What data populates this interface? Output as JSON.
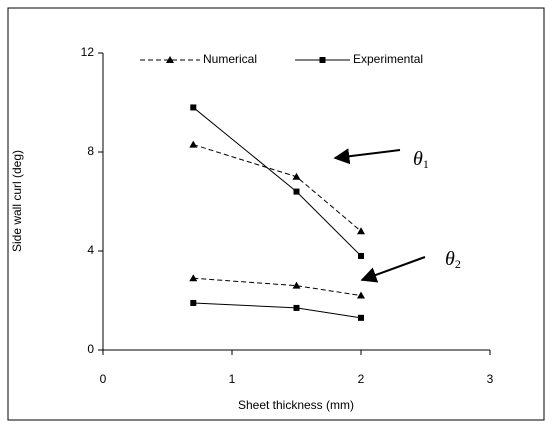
{
  "chart_data": {
    "type": "line",
    "x_label": "Sheet thickness (mm)",
    "y_label": "Side wall curl (deg)",
    "x": [
      0.7,
      1.5,
      2
    ],
    "series": [
      {
        "name": "Numerical",
        "color": "#000000",
        "dash": true,
        "marker": "triangle",
        "values": [
          8.3,
          7.0,
          4.8
        ]
      },
      {
        "name": "Experimental",
        "color": "#000000",
        "dash": false,
        "marker": "square",
        "values": [
          9.8,
          6.4,
          3.8
        ]
      },
      {
        "color": "#000000",
        "dash": true,
        "marker": "triangle",
        "values": [
          2.9,
          2.6,
          2.2
        ]
      },
      {
        "color": "#000000",
        "dash": false,
        "marker": "square",
        "values": [
          1.9,
          1.7,
          1.3
        ]
      }
    ],
    "annotations": [
      {
        "symbol": "θ",
        "subscript": "1"
      },
      {
        "symbol": "θ",
        "subscript": "2"
      }
    ],
    "xlim": [
      0,
      3
    ],
    "xticks": [
      0,
      1,
      2,
      3
    ],
    "ylim": [
      0,
      12
    ],
    "yticks": [
      0,
      4,
      8,
      12
    ],
    "grid": false,
    "legend": "top"
  }
}
